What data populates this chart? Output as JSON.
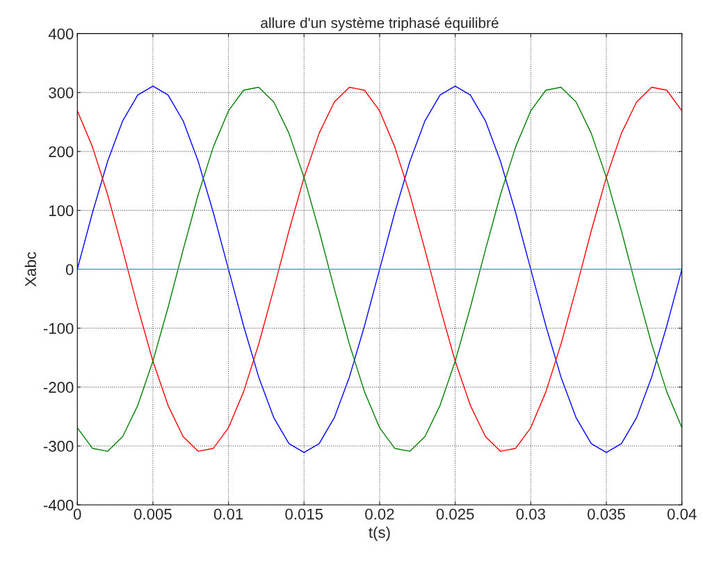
{
  "chart_data": {
    "type": "line",
    "title": "allure d'un système triphasé équilibré",
    "xlabel": "t(s)",
    "ylabel": "Xabc",
    "x": [
      0,
      0.001,
      0.002,
      0.003,
      0.004,
      0.005,
      0.006,
      0.007,
      0.008,
      0.009,
      0.01,
      0.011,
      0.012,
      0.013,
      0.014,
      0.015,
      0.016,
      0.017,
      0.018,
      0.019,
      0.02,
      0.021,
      0.022,
      0.023,
      0.024,
      0.025,
      0.026,
      0.027,
      0.028,
      0.029,
      0.03,
      0.031,
      0.032,
      0.033,
      0.034,
      0.035,
      0.036,
      0.037,
      0.038,
      0.039,
      0.04
    ],
    "series": [
      {
        "color": "#0000ff",
        "values": [
          0,
          96,
          183,
          252,
          296,
          311,
          296,
          252,
          183,
          96,
          0,
          -96,
          -183,
          -252,
          -296,
          -311,
          -296,
          -252,
          -183,
          -96,
          0,
          96,
          183,
          252,
          296,
          311,
          296,
          252,
          183,
          96,
          0,
          -96,
          -183,
          -252,
          -296,
          -311,
          -296,
          -252,
          -183,
          -96,
          0
        ]
      },
      {
        "color": "#ff0000",
        "values": [
          269,
          208,
          127,
          33,
          -65,
          -156,
          -231,
          -284,
          -309,
          -304,
          -269,
          -208,
          -127,
          -33,
          65,
          156,
          231,
          284,
          309,
          304,
          269,
          208,
          127,
          33,
          -65,
          -156,
          -231,
          -284,
          -309,
          -304,
          -269,
          -208,
          -127,
          -33,
          65,
          156,
          231,
          284,
          309,
          304,
          269
        ]
      },
      {
        "color": "#008000",
        "values": [
          -269,
          -304,
          -309,
          -284,
          -231,
          -156,
          -65,
          33,
          127,
          208,
          269,
          304,
          309,
          284,
          231,
          156,
          65,
          -33,
          -127,
          -208,
          -269,
          -304,
          -309,
          -284,
          -231,
          -156,
          -65,
          33,
          127,
          208,
          269,
          304,
          309,
          284,
          231,
          156,
          65,
          -33,
          -127,
          -208,
          -269
        ]
      },
      {
        "color": "#00bfbf",
        "x": [
          0,
          0.04
        ],
        "values": [
          0,
          0
        ]
      }
    ],
    "xlim": [
      0,
      0.04
    ],
    "ylim": [
      -400,
      400
    ],
    "xticks": [
      0,
      0.005,
      0.01,
      0.015,
      0.02,
      0.025,
      0.03,
      0.035,
      0.04
    ],
    "yticks": [
      -400,
      -300,
      -200,
      -100,
      0,
      100,
      200,
      300,
      400
    ],
    "grid": true,
    "marker": "none",
    "line_style": "solid"
  }
}
